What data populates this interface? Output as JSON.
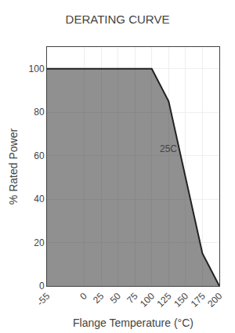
{
  "chart_data": {
    "type": "area",
    "title": "DERATING CURVE",
    "x_label": "Flange Temperature (°C)",
    "y_label": "% Rated Power",
    "x": [
      -55,
      0,
      25,
      50,
      75,
      100,
      125,
      150,
      175,
      200
    ],
    "values": [
      100,
      100,
      100,
      100,
      100,
      100,
      85,
      50,
      15,
      0
    ],
    "color": "#222222",
    "xlim": [
      -55,
      200
    ],
    "xticks": [
      -55,
      0,
      25,
      50,
      75,
      100,
      125,
      150,
      175,
      200
    ],
    "ylim": [
      0,
      110
    ],
    "yticks": [
      0,
      20,
      40,
      60,
      80,
      100
    ],
    "grid": true,
    "annotations": [
      {
        "text": "25C",
        "x": 110,
        "y": 60
      }
    ]
  }
}
